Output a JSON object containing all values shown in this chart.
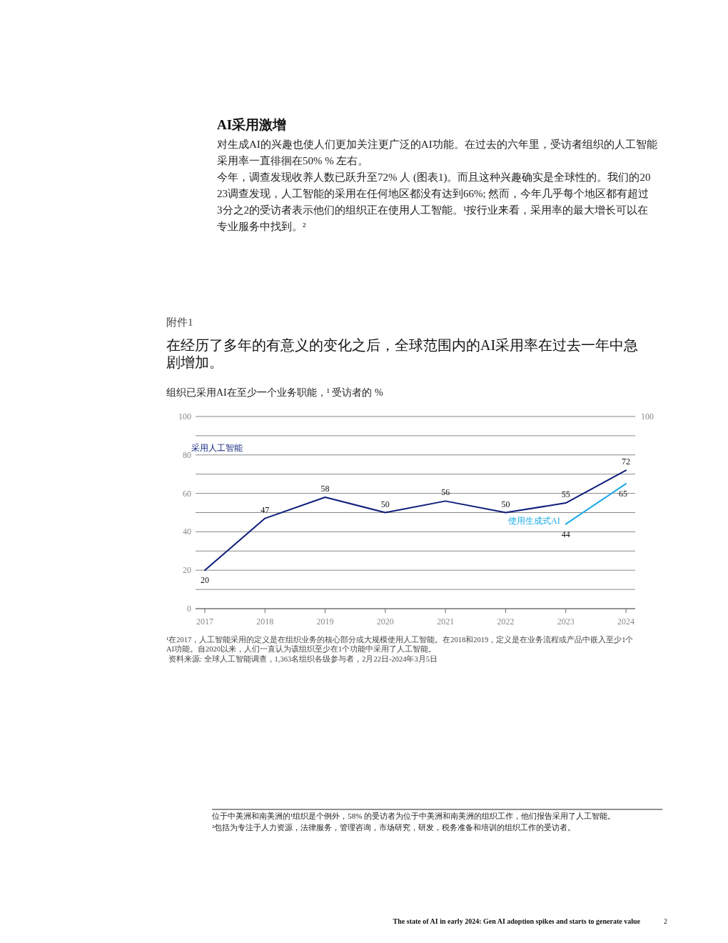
{
  "chart_data": {
    "type": "line",
    "title": "在经历了多年的有意义的变化之后，全球范围内的AI采用率在过去一年中急剧增加。",
    "subtitle": "组织已采用AI在至少一个业务职能，¹ 受访者的 %",
    "categories": [
      "2017",
      "2018",
      "2019",
      "2020",
      "2021",
      "2022",
      "2023",
      "2024"
    ],
    "series": [
      {
        "name": "采用人工智能",
        "color": "#0d1d7a",
        "values": [
          20,
          47,
          58,
          50,
          56,
          50,
          55,
          72
        ]
      },
      {
        "name": "使用生成式AI",
        "color": "#1aaae8",
        "values": [
          null,
          null,
          null,
          null,
          null,
          null,
          44,
          65
        ]
      }
    ],
    "ylim": [
      0,
      100
    ],
    "yticks": [
      0,
      {
        "value": 10,
        "label": null
      },
      20,
      {
        "value": 30,
        "label": null
      },
      40,
      {
        "value": 50,
        "label": null
      },
      60,
      {
        "value": 70,
        "label": null
      },
      80,
      {
        "value": 90,
        "label": null
      },
      100
    ],
    "grid": "y",
    "data_labels": true,
    "marker": "none",
    "line_style": "solid",
    "annotations": [
      "AI采用激增",
      "对生成AI的兴趣也使人们更加关注更广泛的AI功能。在过去的六年里，受访者组织的人工智能采用率一直徘徊在50% % 左右。",
      "今年，调查发现收养人数已跃升至72% 人 (图表1)。而且这种兴趣确实是全球性的。我们的2023调查发现，人工智能的采用在任何地区都没有达到66%; 然而，今年几乎每个地区都有超过3分之2的受访者表示他们的组织正在使用人工智能。¹按行业来看，采用率的最大增长可以在专业服务中找到。²",
      "附件1",
      "¹在2017，人工智能采用的定义是在组织业务的核心部分或大规模使用人工智能。在2018和2019，定义是在业务流程或产品中嵌入至少1个AI功能。自2020以来，人们一直认为该组织至少在1个功能中采用了人工智能。",
      "资料来源: 全球人工智能调查，1,363名组织各级参与者，2月22日-2024年3月5日",
      "位于中美洲和南美洲的¹组织是个例外，58% 的受访者为位于中美洲和南美洲的组织工作，他们报告采用了人工智能。",
      "²包括为专注于人力资源，法律服务，管理咨询，市场研究，研发，税务准备和培训的组织工作的受访者。",
      "The state of AI in early 2024: Gen AI adoption spikes and starts to generate value",
      "2",
      "100"
    ]
  }
}
